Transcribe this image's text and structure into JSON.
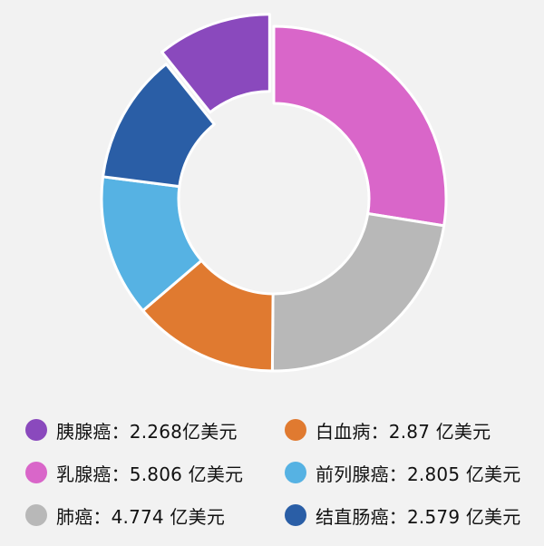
{
  "chart_data": {
    "type": "pie",
    "donut": true,
    "legend_position": "bottom",
    "slices": [
      {
        "name": "乳腺癌",
        "value": 5.806,
        "color": "#d966c9",
        "label": "乳腺癌：5.806 亿美元"
      },
      {
        "name": "肺癌",
        "value": 4.774,
        "color": "#b8b8b8",
        "label": "肺癌：4.774 亿美元"
      },
      {
        "name": "白血病",
        "value": 2.87,
        "color": "#e07a30",
        "label": "白血病：2.87 亿美元"
      },
      {
        "name": "前列腺癌",
        "value": 2.805,
        "color": "#56b2e3",
        "label": "前列腺癌：2.805 亿美元"
      },
      {
        "name": "结直肠癌",
        "value": 2.579,
        "color": "#2a5ea6",
        "label": "结直肠癌：2.579 亿美元"
      },
      {
        "name": "胰腺癌",
        "value": 2.268,
        "color": "#8a49bd",
        "label": "胰腺癌：2.268亿美元",
        "exploded": true
      }
    ],
    "legend_order": [
      "胰腺癌",
      "白血病",
      "乳腺癌",
      "前列腺癌",
      "肺癌",
      "结直肠癌"
    ]
  }
}
